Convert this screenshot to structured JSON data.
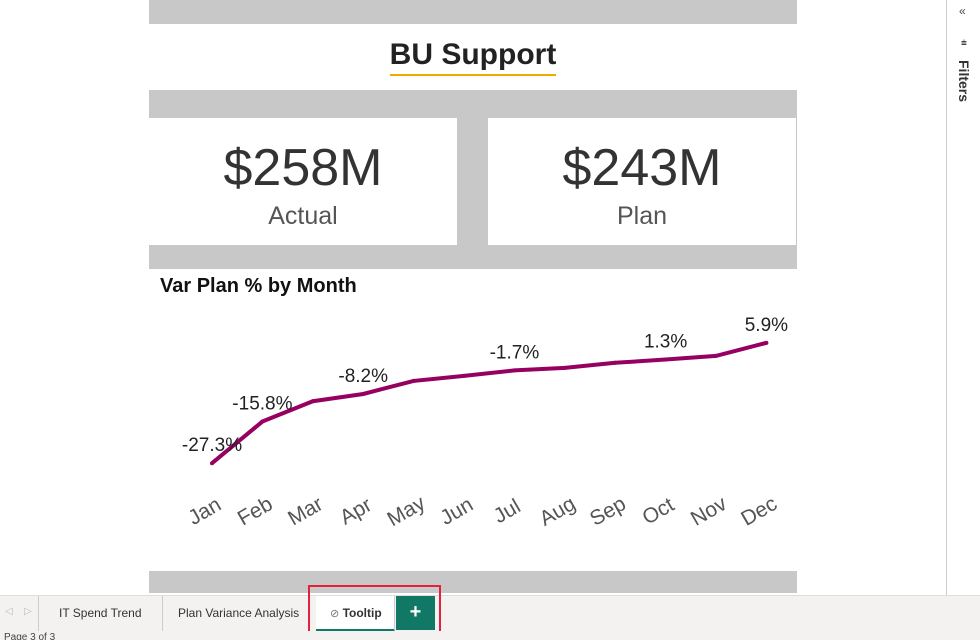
{
  "title": "BU Support",
  "kpis": [
    {
      "value": "$258M",
      "label": "Actual"
    },
    {
      "value": "$243M",
      "label": "Plan"
    }
  ],
  "chart_data": {
    "type": "line",
    "title": "Var Plan % by Month",
    "categories": [
      "Jan",
      "Feb",
      "Mar",
      "Apr",
      "May",
      "Jun",
      "Jul",
      "Aug",
      "Sep",
      "Oct",
      "Nov",
      "Dec"
    ],
    "values": [
      -27.3,
      -15.8,
      -10.2,
      -8.2,
      -4.6,
      -3.2,
      -1.7,
      -1.0,
      0.4,
      1.3,
      2.3,
      5.9
    ],
    "data_labels": {
      "0": "-27.3%",
      "1": "-15.8%",
      "3": "-8.2%",
      "6": "-1.7%",
      "9": "1.3%",
      "11": "5.9%"
    },
    "ylim": [
      -30,
      10
    ],
    "color": "#960061"
  },
  "filters_label": "Filters",
  "tabs": [
    "IT Spend Trend",
    "Plan Variance Analysis",
    "Tooltip"
  ],
  "add_tab": "+",
  "status": "Page 3 of 3"
}
